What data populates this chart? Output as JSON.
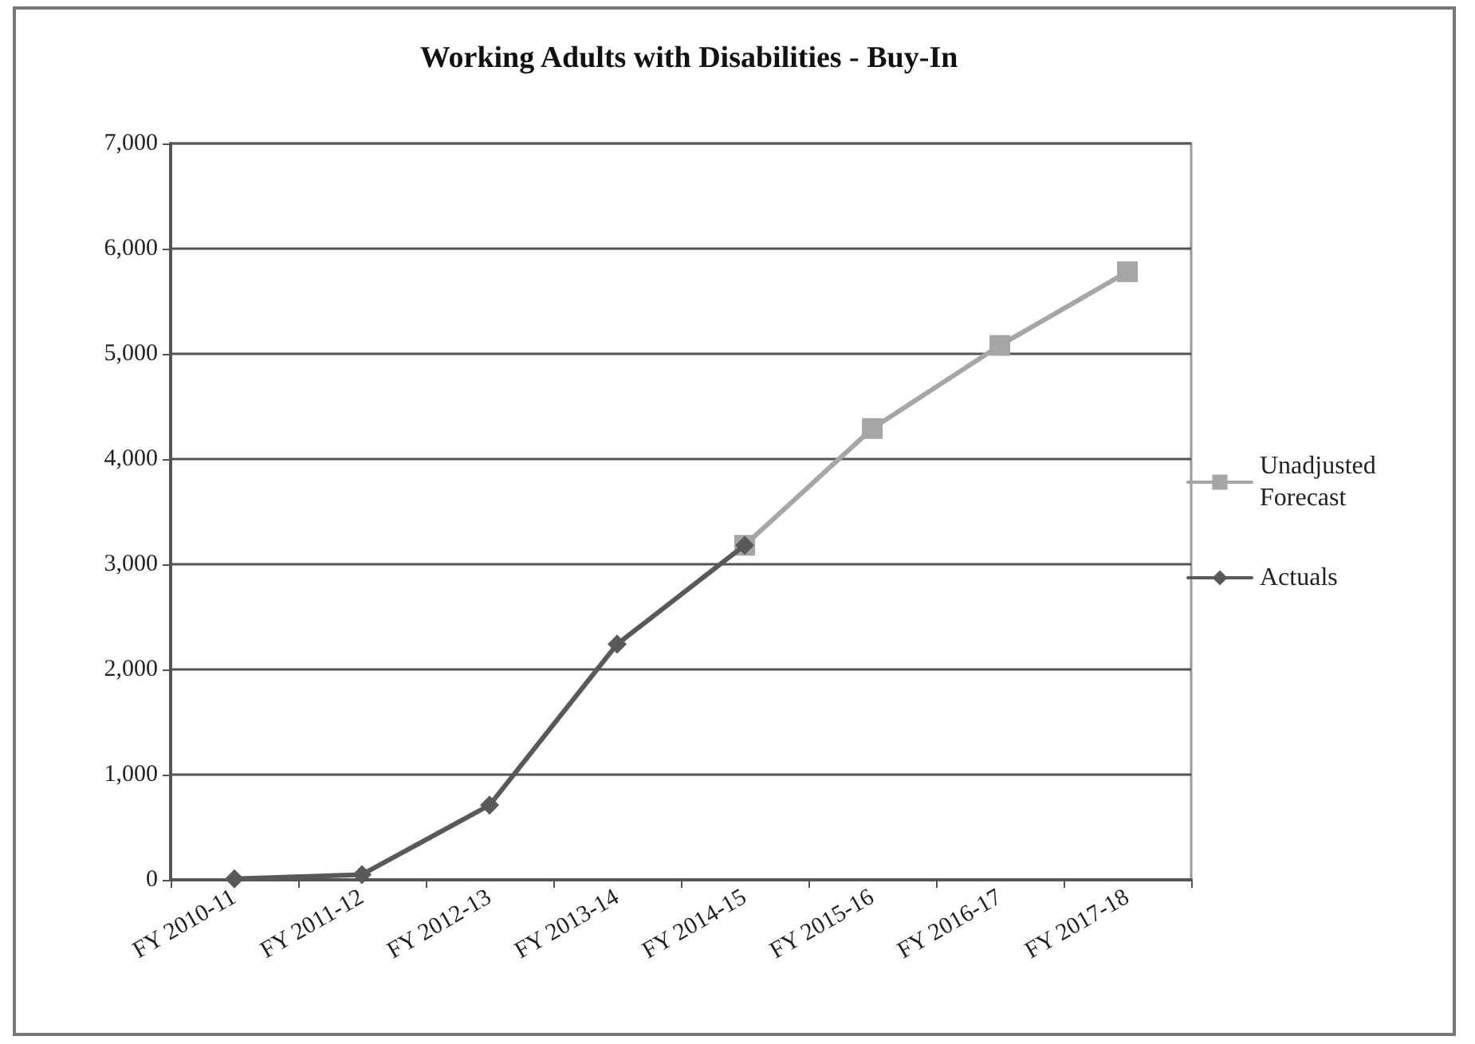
{
  "chart_data": {
    "type": "line",
    "title": "Working Adults with Disabilities - Buy-In",
    "categories": [
      "FY 2010-11",
      "FY 2011-12",
      "FY 2012-13",
      "FY 2013-14",
      "FY 2014-15",
      "FY 2015-16",
      "FY 2016-17",
      "FY 2017-18"
    ],
    "series": [
      {
        "name": "Unadjusted Forecast",
        "color": "#a6a6a6",
        "marker": "square",
        "values": [
          null,
          null,
          null,
          null,
          3180,
          4290,
          5080,
          5780
        ]
      },
      {
        "name": "Actuals",
        "color": "#595959",
        "marker": "diamond",
        "values": [
          10,
          50,
          710,
          2240,
          3180,
          null,
          null,
          null
        ]
      }
    ],
    "ylim": [
      0,
      7000
    ],
    "yticks": [
      0,
      {
        "value": 1000,
        "label": "1,000"
      },
      {
        "value": 2000,
        "label": "2,000"
      },
      {
        "value": 3000,
        "label": "3,000"
      },
      {
        "value": 4000,
        "label": "4,000"
      },
      {
        "value": 5000,
        "label": "5,000"
      },
      {
        "value": 6000,
        "label": "6,000"
      },
      {
        "value": 7000,
        "label": "7,000"
      }
    ],
    "grid": "y",
    "legend": "right"
  }
}
